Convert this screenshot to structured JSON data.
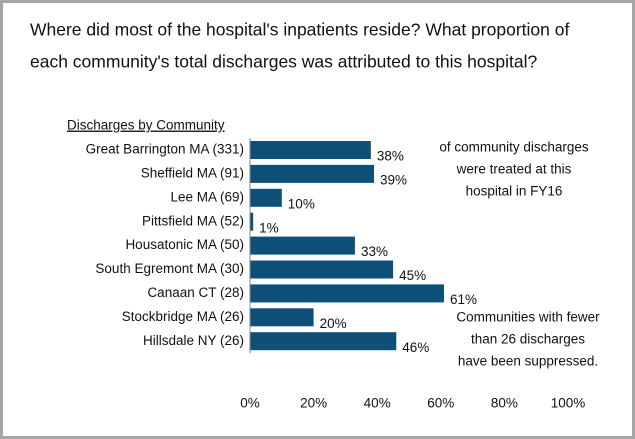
{
  "chart_data": {
    "type": "barh",
    "title": [
      "Where did most of the hospital's inpatients reside? What proportion of",
      "each community's total discharges was attributed to this hospital?"
    ],
    "axis_title": "Discharges by Community",
    "categories": [
      "Great Barrington MA (331)",
      "Sheffield MA (91)",
      "Lee MA (69)",
      "Pittsfield MA (52)",
      "Housatonic MA (50)",
      "South Egremont MA (30)",
      "Canaan CT (28)",
      "Stockbridge MA (26)",
      "Hillsdale NY (26)"
    ],
    "values": [
      38,
      39,
      10,
      1,
      33,
      45,
      61,
      20,
      46
    ],
    "value_labels": [
      "38%",
      "39%",
      "10%",
      "1%",
      "33%",
      "45%",
      "61%",
      "20%",
      "46%"
    ],
    "color": "#0e5078",
    "xlim": [
      0,
      100
    ],
    "xticks": [
      {
        "value": 0,
        "label": "0%"
      },
      {
        "value": 20,
        "label": "20%"
      },
      {
        "value": 40,
        "label": "40%"
      },
      {
        "value": 60,
        "label": "60%"
      },
      {
        "value": 80,
        "label": "80%"
      },
      {
        "value": 100,
        "label": "100%"
      }
    ],
    "annotations": [
      [
        "of community discharges",
        "were treated at this",
        "hospital in FY16"
      ],
      [
        "Communities with fewer",
        "than 26 discharges",
        "have been suppressed."
      ]
    ]
  }
}
